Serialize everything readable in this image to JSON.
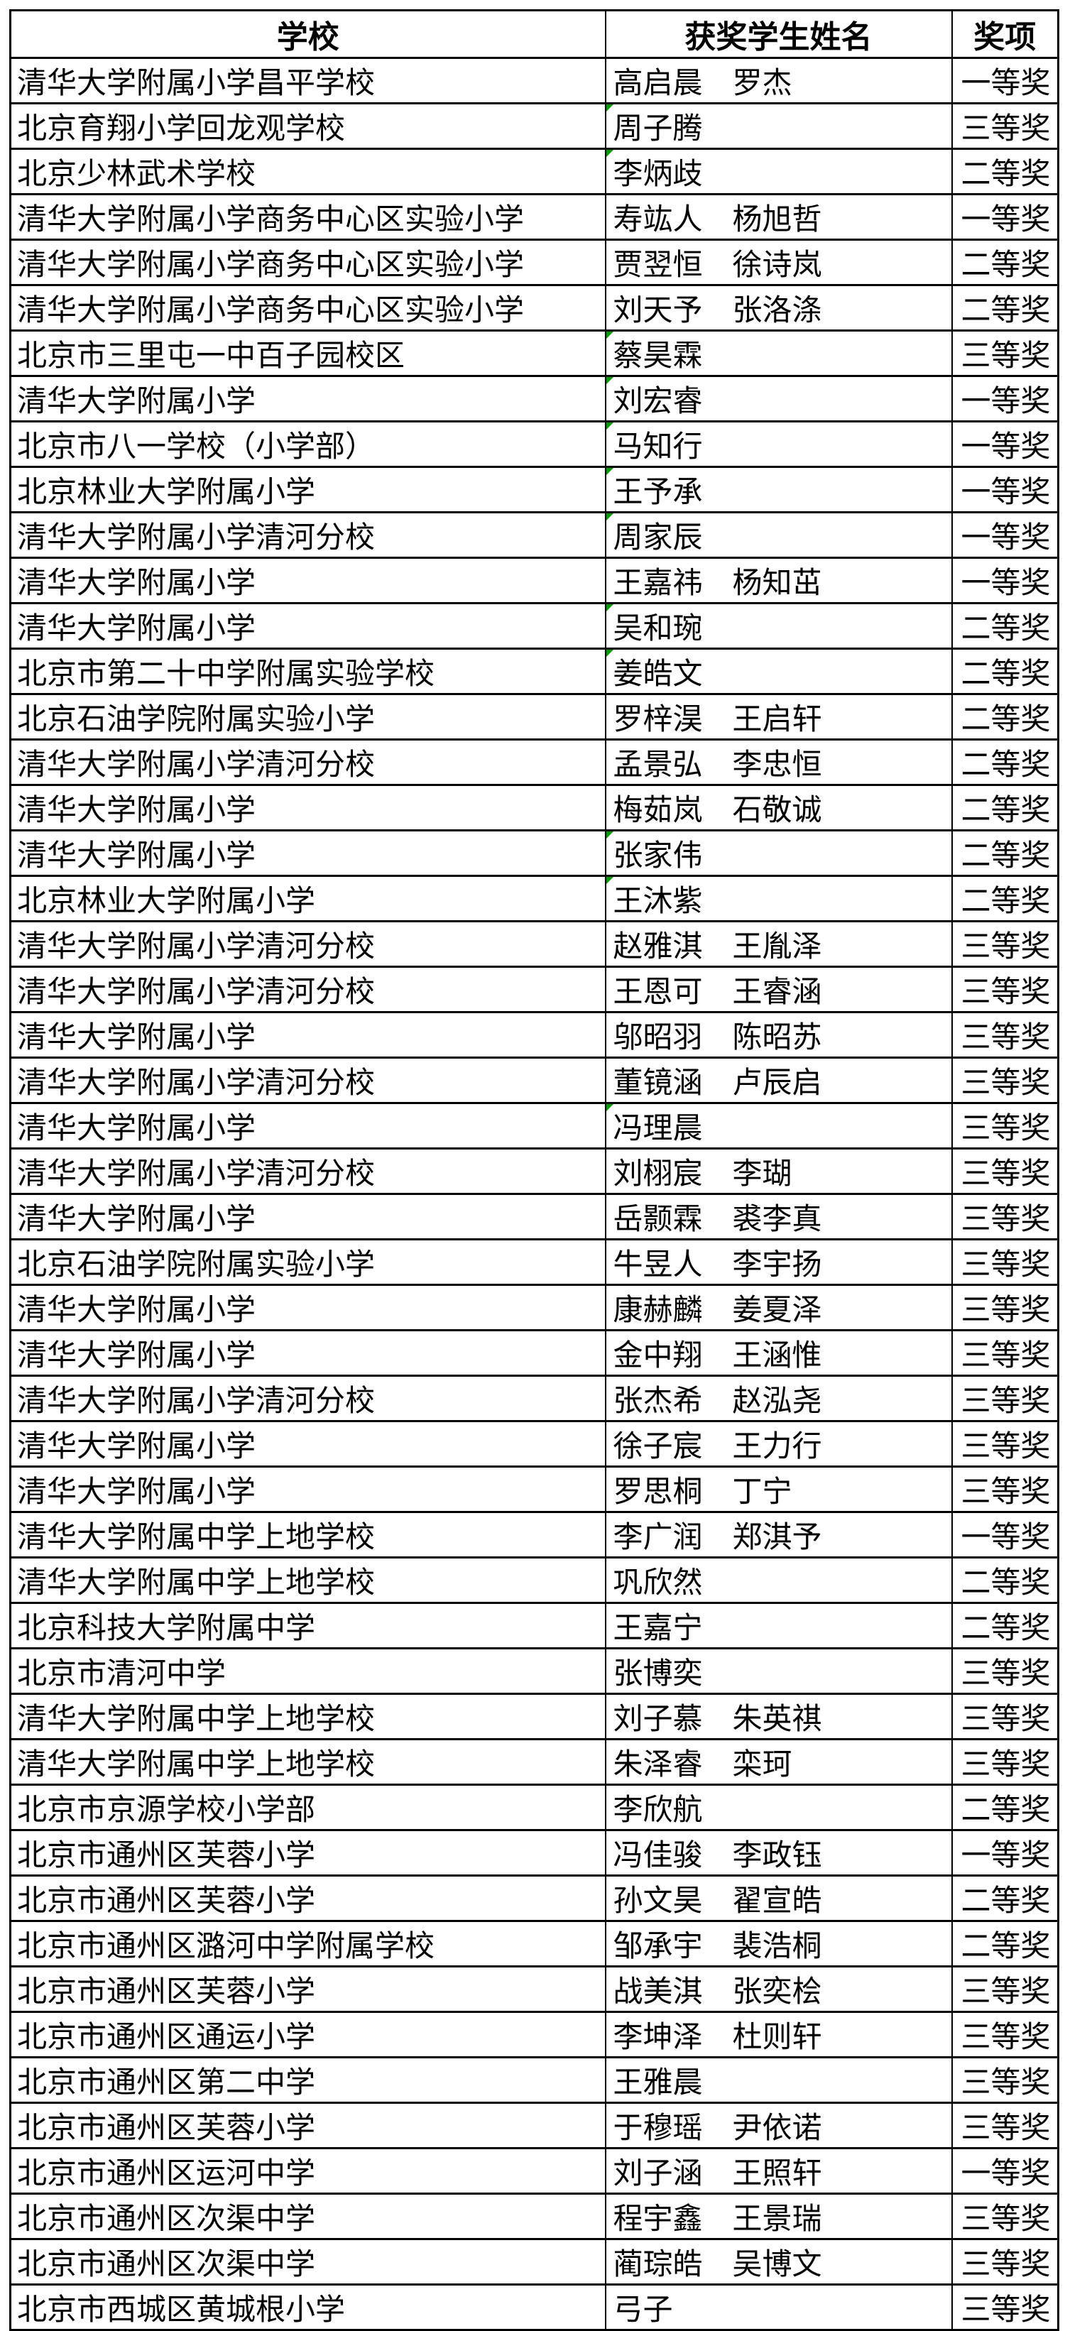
{
  "table": {
    "marker_color": "#009900",
    "columns": [
      {
        "key": "school",
        "label": "学校"
      },
      {
        "key": "students",
        "label": "获奖学生姓名"
      },
      {
        "key": "award",
        "label": "奖项"
      }
    ],
    "rows": [
      {
        "school": "清华大学附属小学昌平学校",
        "students": "高启晨　罗杰",
        "award": "一等奖",
        "marker": false
      },
      {
        "school": "北京育翔小学回龙观学校",
        "students": "周子腾",
        "award": "三等奖",
        "marker": true
      },
      {
        "school": "北京少林武术学校",
        "students": "李炳歧",
        "award": "二等奖",
        "marker": true
      },
      {
        "school": "清华大学附属小学商务中心区实验小学",
        "students": "寿竑人　杨旭哲",
        "award": "一等奖",
        "marker": false
      },
      {
        "school": "清华大学附属小学商务中心区实验小学",
        "students": "贾翌恒　徐诗岚",
        "award": "二等奖",
        "marker": false
      },
      {
        "school": "清华大学附属小学商务中心区实验小学",
        "students": "刘天予　张洛涤",
        "award": "二等奖",
        "marker": false
      },
      {
        "school": "北京市三里屯一中百子园校区",
        "students": "蔡昊霖",
        "award": "三等奖",
        "marker": true
      },
      {
        "school": "清华大学附属小学",
        "students": "刘宏睿",
        "award": "一等奖",
        "marker": true
      },
      {
        "school": "北京市八一学校（小学部）",
        "students": "马知行",
        "award": "一等奖",
        "marker": true
      },
      {
        "school": "北京林业大学附属小学",
        "students": "王予承",
        "award": "一等奖",
        "marker": true
      },
      {
        "school": "清华大学附属小学清河分校",
        "students": "周家辰",
        "award": "一等奖",
        "marker": true
      },
      {
        "school": "清华大学附属小学",
        "students": "王嘉祎　杨知茁",
        "award": "一等奖",
        "marker": false
      },
      {
        "school": "清华大学附属小学",
        "students": "吴和琬",
        "award": "二等奖",
        "marker": true
      },
      {
        "school": "北京市第二十中学附属实验学校",
        "students": "姜皓文",
        "award": "二等奖",
        "marker": true
      },
      {
        "school": "北京石油学院附属实验小学",
        "students": "罗梓淏　王启轩",
        "award": "二等奖",
        "marker": false
      },
      {
        "school": "清华大学附属小学清河分校",
        "students": "孟景弘　李忠恒",
        "award": "二等奖",
        "marker": false
      },
      {
        "school": "清华大学附属小学",
        "students": "梅茹岚　石敬诚",
        "award": "二等奖",
        "marker": false
      },
      {
        "school": "清华大学附属小学",
        "students": "张家伟",
        "award": "二等奖",
        "marker": true
      },
      {
        "school": "北京林业大学附属小学",
        "students": "王沐紫",
        "award": "二等奖",
        "marker": true
      },
      {
        "school": "清华大学附属小学清河分校",
        "students": "赵雅淇　王胤泽",
        "award": "三等奖",
        "marker": false
      },
      {
        "school": "清华大学附属小学清河分校",
        "students": "王恩可　王睿涵",
        "award": "三等奖",
        "marker": false
      },
      {
        "school": "清华大学附属小学",
        "students": "邬昭羽　陈昭苏",
        "award": "三等奖",
        "marker": false
      },
      {
        "school": "清华大学附属小学清河分校",
        "students": "董镜涵　卢辰启",
        "award": "三等奖",
        "marker": false
      },
      {
        "school": "清华大学附属小学",
        "students": "冯理晨",
        "award": "三等奖",
        "marker": true
      },
      {
        "school": "清华大学附属小学清河分校",
        "students": "刘栩宸　李瑚",
        "award": "三等奖",
        "marker": false
      },
      {
        "school": "清华大学附属小学",
        "students": "岳颢霖　裘李真",
        "award": "三等奖",
        "marker": false
      },
      {
        "school": "北京石油学院附属实验小学",
        "students": "牛昱人　李宇扬",
        "award": "三等奖",
        "marker": false
      },
      {
        "school": "清华大学附属小学",
        "students": "康赫麟　姜夏泽",
        "award": "三等奖",
        "marker": false
      },
      {
        "school": "清华大学附属小学",
        "students": "金中翔　王涵惟",
        "award": "三等奖",
        "marker": false
      },
      {
        "school": "清华大学附属小学清河分校",
        "students": "张杰希　赵泓尧",
        "award": "三等奖",
        "marker": false
      },
      {
        "school": "清华大学附属小学",
        "students": "徐子宸　王力行",
        "award": "三等奖",
        "marker": false
      },
      {
        "school": "清华大学附属小学",
        "students": "罗思桐　丁宁",
        "award": "三等奖",
        "marker": false
      },
      {
        "school": "清华大学附属中学上地学校",
        "students": "李广润　郑淇予",
        "award": "一等奖",
        "marker": false
      },
      {
        "school": "清华大学附属中学上地学校",
        "students": "巩欣然",
        "award": "二等奖",
        "marker": false
      },
      {
        "school": "北京科技大学附属中学",
        "students": "王嘉宁",
        "award": "二等奖",
        "marker": false
      },
      {
        "school": "北京市清河中学",
        "students": "张博奕",
        "award": "三等奖",
        "marker": false
      },
      {
        "school": "清华大学附属中学上地学校",
        "students": "刘子慕　朱英祺",
        "award": "三等奖",
        "marker": false
      },
      {
        "school": "清华大学附属中学上地学校",
        "students": "朱泽睿　栾珂",
        "award": "三等奖",
        "marker": false
      },
      {
        "school": "北京市京源学校小学部",
        "students": "李欣航",
        "award": "二等奖",
        "marker": false
      },
      {
        "school": "北京市通州区芙蓉小学",
        "students": "冯佳骏　李政钰",
        "award": "一等奖",
        "marker": false
      },
      {
        "school": "北京市通州区芙蓉小学",
        "students": "孙文昊　翟宣皓",
        "award": "二等奖",
        "marker": false
      },
      {
        "school": "北京市通州区潞河中学附属学校",
        "students": "邹承宇　裴浩桐",
        "award": "二等奖",
        "marker": false
      },
      {
        "school": "北京市通州区芙蓉小学",
        "students": "战美淇　张奕桧",
        "award": "三等奖",
        "marker": false
      },
      {
        "school": "北京市通州区通运小学",
        "students": "李坤泽　杜则轩",
        "award": "三等奖",
        "marker": false
      },
      {
        "school": "北京市通州区第二中学",
        "students": "王雅晨",
        "award": "三等奖",
        "marker": false
      },
      {
        "school": "北京市通州区芙蓉小学",
        "students": "于穆瑶　尹依诺",
        "award": "三等奖",
        "marker": false
      },
      {
        "school": "北京市通州区运河中学",
        "students": "刘子涵　王照轩",
        "award": "一等奖",
        "marker": false
      },
      {
        "school": "北京市通州区次渠中学",
        "students": "程宇鑫　王景瑞",
        "award": "三等奖",
        "marker": false
      },
      {
        "school": "北京市通州区次渠中学",
        "students": "蔺琮皓　吴博文",
        "award": "三等奖",
        "marker": false
      },
      {
        "school": "北京市西城区黄城根小学",
        "students": "弓子",
        "award": "三等奖",
        "marker": false
      }
    ]
  }
}
